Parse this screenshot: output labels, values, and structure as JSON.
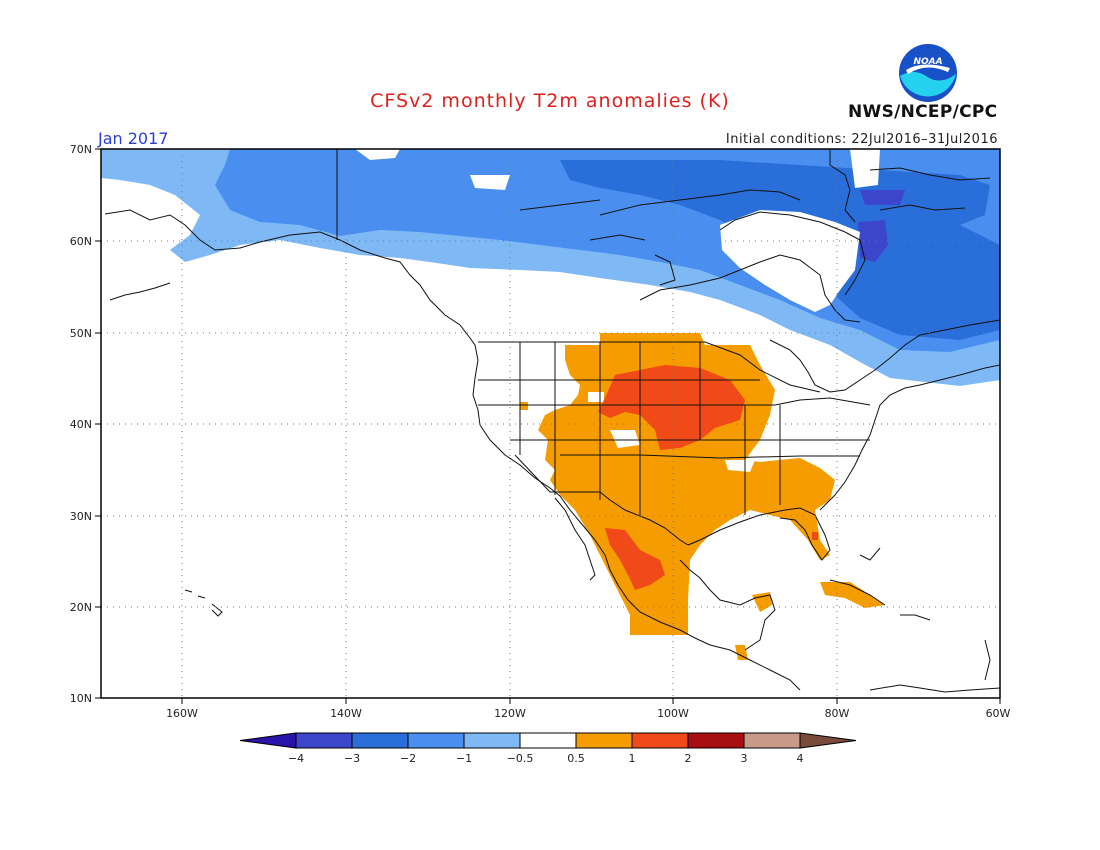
{
  "title": "CFSv2 monthly T2m anomalies (K)",
  "period": "Jan 2017",
  "initial_conditions": "Initial conditions: 22Jul2016–31Jul2016",
  "agency": "NWS/NCEP/CPC",
  "logo_text": "NOAA",
  "lat_labels": [
    "70N",
    "60N",
    "50N",
    "40N",
    "30N",
    "20N",
    "10N"
  ],
  "lon_labels": [
    "160W",
    "140W",
    "120W",
    "100W",
    "80W",
    "60W"
  ],
  "colorbar": {
    "labels": [
      "−4",
      "−3",
      "−2",
      "−1",
      "−0.5",
      "0.5",
      "1",
      "2",
      "3",
      "4"
    ],
    "colors": [
      "#2a13a8",
      "#3c46cc",
      "#2a6fd9",
      "#4a8ff0",
      "#7fb9f5",
      "#ffffff",
      "#f59c00",
      "#f04a18",
      "#a80f10",
      "#c79a8a",
      "#7a4a3a"
    ]
  },
  "colors": {
    "title": "#e0201c",
    "period": "#2a3fd6",
    "logo_blue": "#1850c8",
    "logo_cyan": "#24d2f0"
  }
}
